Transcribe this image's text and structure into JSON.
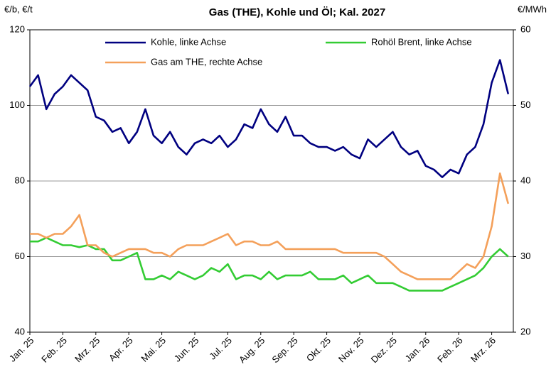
{
  "chart_data": {
    "type": "line",
    "title": "Gas (THE), Kohle und Öl; Kal. 2027",
    "y_label": "€/b, €/t",
    "y2_label": "€/MWh",
    "categories": [
      "Jan. 25",
      null,
      null,
      null,
      "Feb. 25",
      null,
      null,
      null,
      "Mrz. 25",
      null,
      null,
      null,
      "Apr. 25",
      null,
      null,
      null,
      "Mai. 25",
      null,
      null,
      null,
      "Jun. 25",
      null,
      null,
      null,
      "Jul. 25",
      null,
      null,
      null,
      "Aug. 25",
      null,
      null,
      null,
      "Sep. 25",
      null,
      null,
      null,
      "Okt. 25",
      null,
      null,
      null,
      "Nov. 25",
      null,
      null,
      null,
      "Dez. 25",
      null,
      null,
      null,
      "Jan. 26",
      null,
      null,
      null,
      "Feb. 26",
      null,
      null,
      null,
      "Mrz. 26",
      null,
      null
    ],
    "series": [
      {
        "name": "Kohle, linke Achse",
        "color": "#000080",
        "axis": "y",
        "values": [
          105,
          108,
          99,
          103,
          105,
          108,
          106,
          104,
          97,
          96,
          93,
          94,
          90,
          93,
          99,
          92,
          90,
          93,
          89,
          87,
          90,
          91,
          90,
          92,
          89,
          91,
          95,
          94,
          99,
          95,
          93,
          97,
          92,
          92,
          90,
          89,
          89,
          88,
          89,
          87,
          86,
          91,
          89,
          91,
          93,
          89,
          87,
          88,
          84,
          83,
          81,
          83,
          82,
          87,
          89,
          95,
          106,
          112,
          103
        ]
      },
      {
        "name": "Rohöl Brent, linke Achse",
        "color": "#33cc33",
        "axis": "y",
        "values": [
          64,
          64,
          65,
          64,
          63,
          63,
          62.5,
          63,
          62,
          62,
          59,
          59,
          60,
          61,
          54,
          54,
          55,
          54,
          56,
          55,
          54,
          55,
          57,
          56,
          58,
          54,
          55,
          55,
          54,
          56,
          54,
          55,
          55,
          55,
          56,
          54,
          54,
          54,
          55,
          53,
          54,
          55,
          53,
          53,
          53,
          52,
          51,
          51,
          51,
          51,
          51,
          52,
          53,
          54,
          55,
          57,
          60,
          62,
          60
        ]
      },
      {
        "name": "Gas am THE, rechte Achse",
        "color": "#f4a05a",
        "axis": "y2",
        "values": [
          33,
          33,
          32.5,
          33,
          33,
          34,
          35.5,
          31.5,
          31.5,
          30.5,
          30,
          30.5,
          31,
          31,
          31,
          30.5,
          30.5,
          30,
          31,
          31.5,
          31.5,
          31.5,
          32,
          32.5,
          33,
          31.5,
          32,
          32,
          31.5,
          31.5,
          32,
          31,
          31,
          31,
          31,
          31,
          31,
          31,
          30.5,
          30.5,
          30.5,
          30.5,
          30.5,
          30,
          29,
          28,
          27.5,
          27,
          27,
          27,
          27,
          27,
          28,
          29,
          28.5,
          30,
          34,
          41,
          37
        ]
      }
    ],
    "ylim": [
      40,
      120
    ],
    "yticks": [
      40,
      60,
      80,
      100,
      120
    ],
    "y2lim": [
      20,
      60
    ],
    "y2ticks": [
      20,
      30,
      40,
      50,
      60
    ],
    "grid": true
  }
}
